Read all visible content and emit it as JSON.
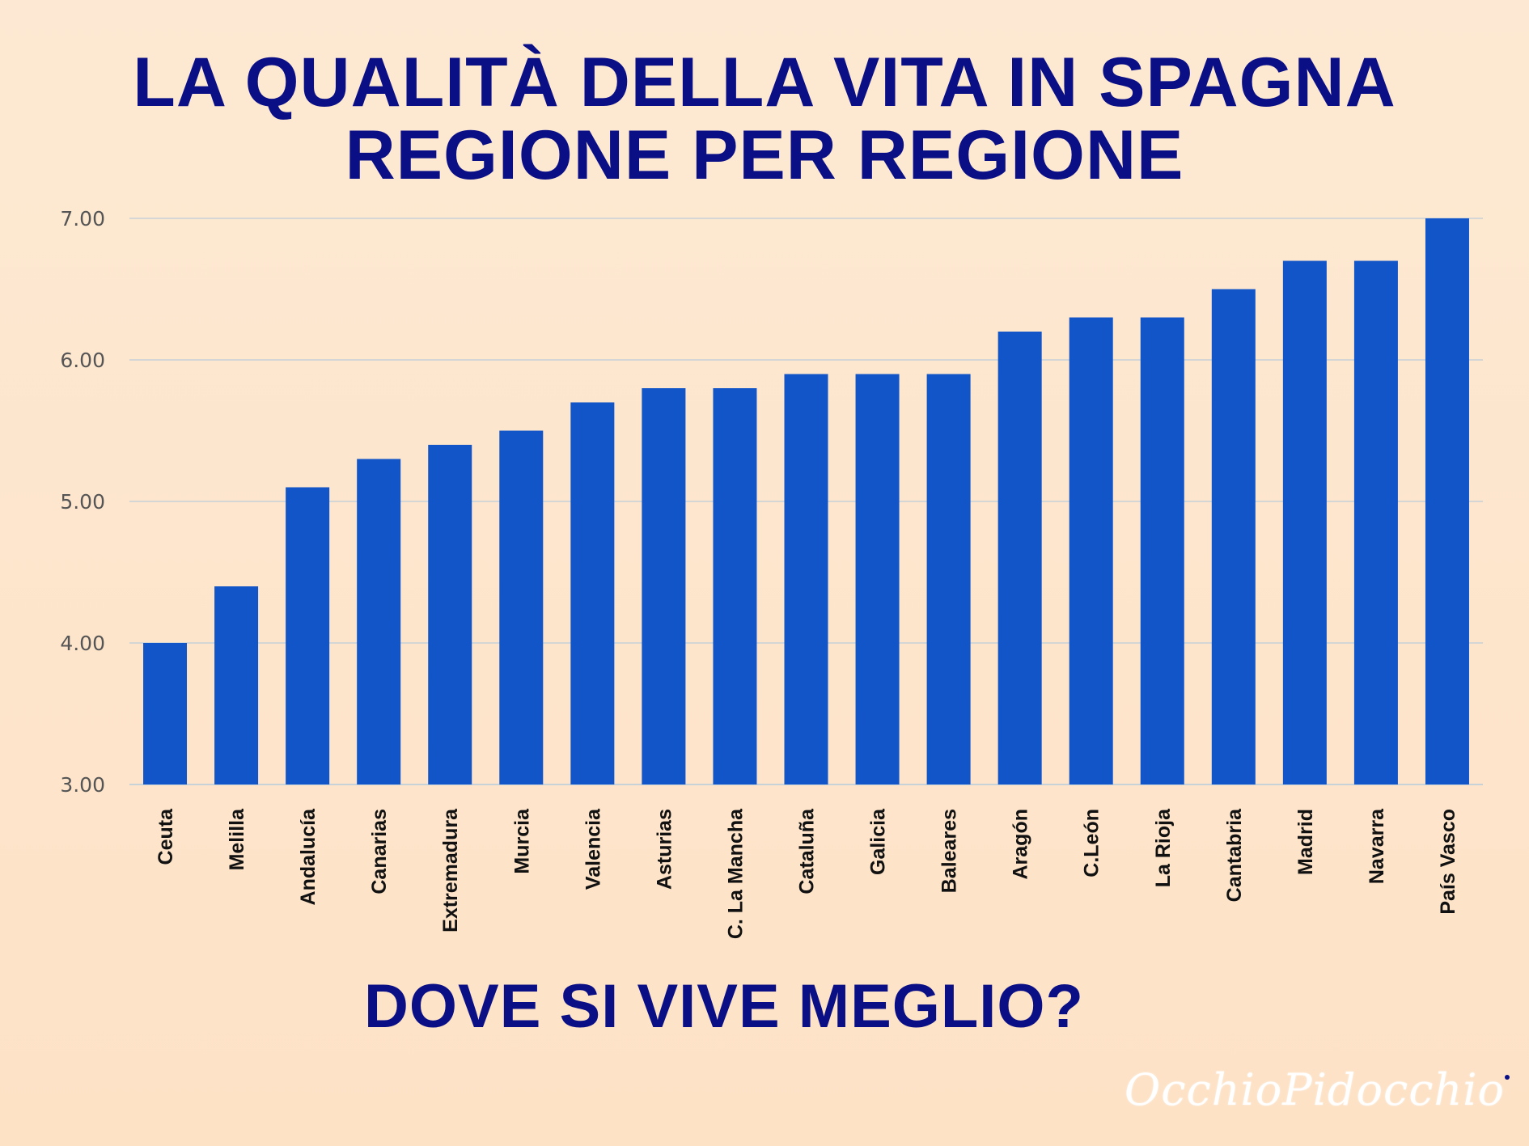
{
  "header": {
    "title_line1": "LA QUALITÀ DELLA VITA IN SPAGNA",
    "title_line2": "REGIONE PER REGIONE"
  },
  "footer": {
    "question": "DOVE SI VIVE MEGLIO?",
    "logo": "OcchioPidocchio"
  },
  "colors": {
    "bar": "#1255c8",
    "title": "#0a0f86",
    "grid": "#c7d1d8"
  },
  "chart_data": {
    "type": "bar",
    "categories": [
      "Ceuta",
      "Melilla",
      "Andalucía",
      "Canarias",
      "Extremadura",
      "Murcia",
      "Valencia",
      "Asturias",
      "C. La Mancha",
      "Cataluña",
      "Galicia",
      "Baleares",
      "Aragón",
      "C.León",
      "La Rioja",
      "Cantabria",
      "Madrid",
      "Navarra",
      "País Vasco"
    ],
    "values": [
      4.0,
      4.4,
      5.1,
      5.3,
      5.4,
      5.5,
      5.7,
      5.8,
      5.8,
      5.9,
      5.9,
      5.9,
      6.2,
      6.3,
      6.3,
      6.5,
      6.7,
      6.7,
      7.0
    ],
    "yticks": [
      "3.00",
      "4.00",
      "5.00",
      "6.00",
      "7.00"
    ],
    "ylim": [
      3,
      7
    ],
    "grid": true,
    "legend": "none"
  }
}
